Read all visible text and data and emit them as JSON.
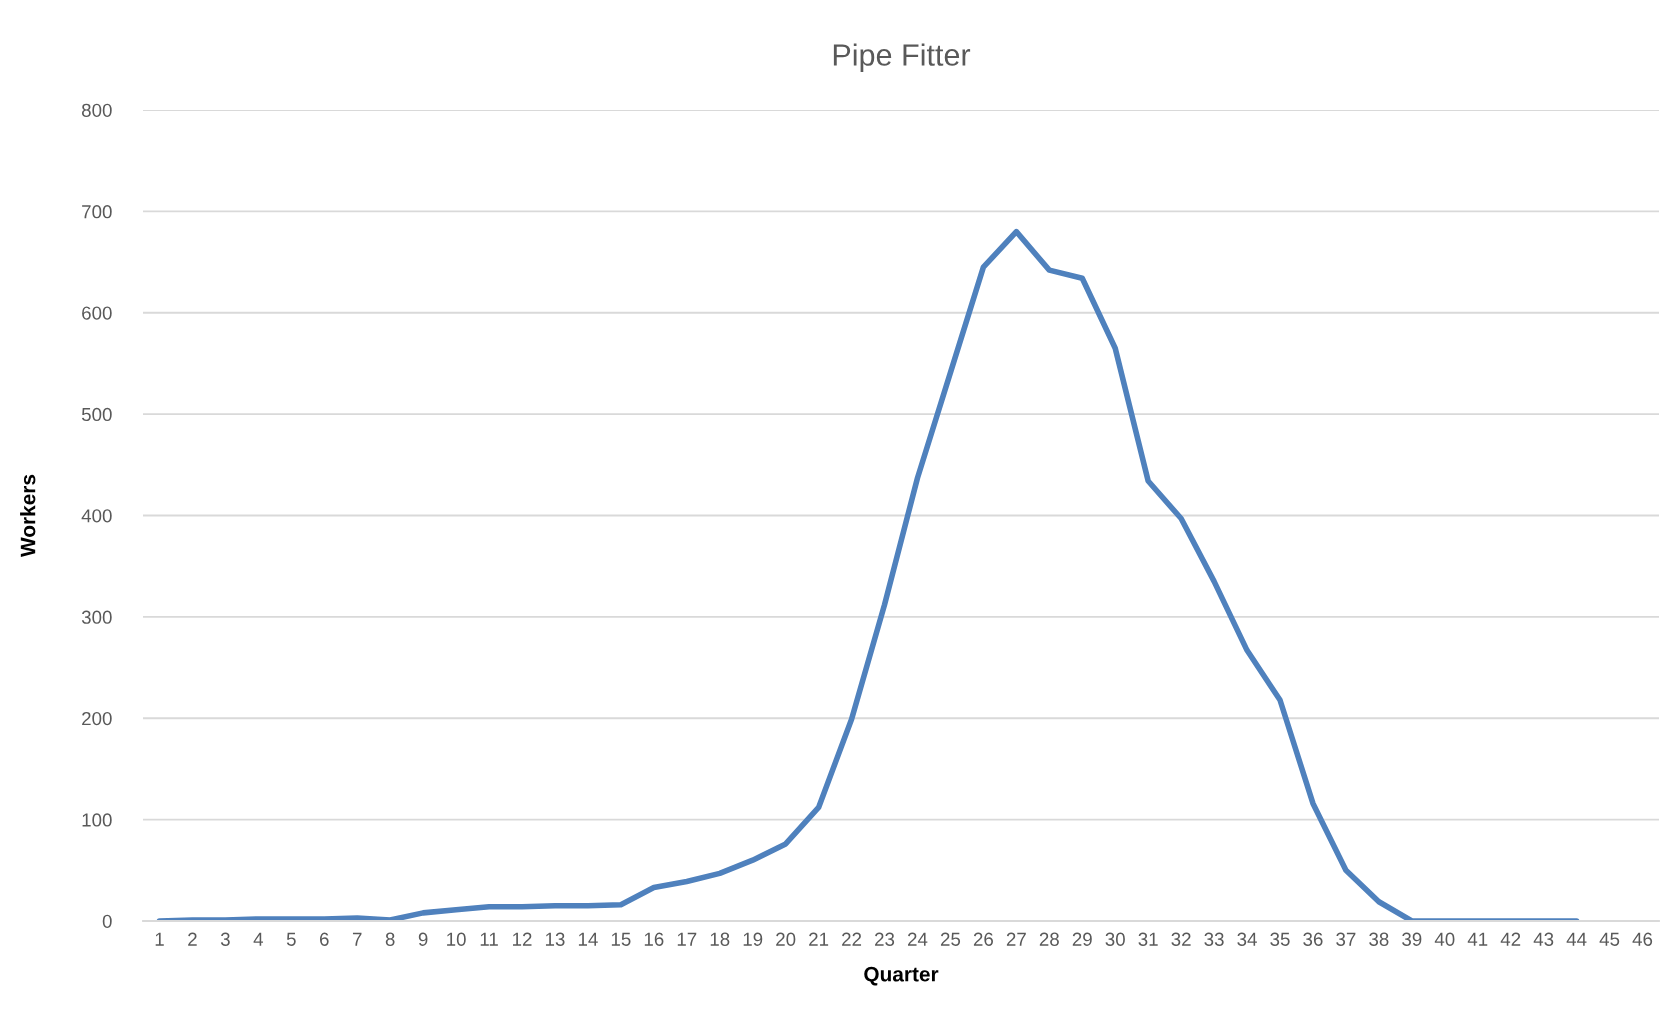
{
  "chart_data": {
    "type": "line",
    "title": "Pipe Fitter",
    "xlabel": "Quarter",
    "ylabel": "Workers",
    "categories": [
      "1",
      "2",
      "3",
      "4",
      "5",
      "6",
      "7",
      "8",
      "9",
      "10",
      "11",
      "12",
      "13",
      "14",
      "15",
      "16",
      "17",
      "18",
      "19",
      "20",
      "21",
      "22",
      "23",
      "24",
      "25",
      "26",
      "27",
      "28",
      "29",
      "30",
      "31",
      "32",
      "33",
      "34",
      "35",
      "36",
      "37",
      "38",
      "39",
      "40",
      "41",
      "42",
      "43",
      "44",
      "45",
      "46"
    ],
    "series": [
      {
        "color": "#4f81bd",
        "values": [
          0,
          1,
          1,
          2,
          2,
          2,
          3,
          1,
          8,
          11,
          14,
          14,
          15,
          15,
          16,
          33,
          39,
          47,
          60,
          76,
          112,
          199,
          312,
          437,
          541,
          645,
          680,
          642,
          634,
          565,
          434,
          397,
          335,
          267,
          218,
          116,
          50,
          19,
          0,
          0,
          0,
          0,
          0,
          0,
          null,
          null
        ]
      }
    ],
    "ylim": [
      0,
      800
    ],
    "yticks": [
      0,
      100,
      200,
      300,
      400,
      500,
      600,
      700,
      800
    ],
    "grid": "y",
    "marker": "none",
    "line_style": "solid"
  }
}
